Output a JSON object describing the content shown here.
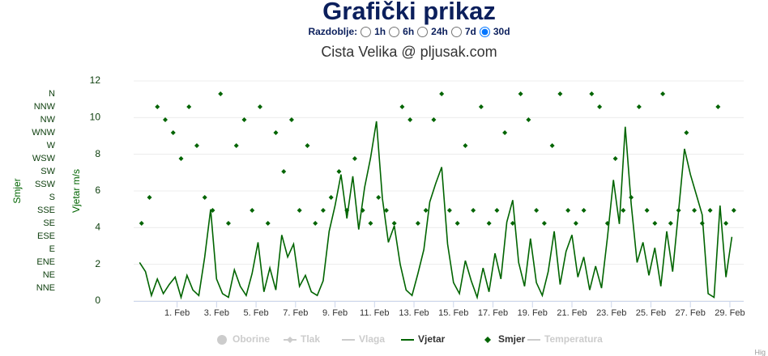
{
  "header": {
    "title": "Grafički prikaz",
    "period_label": "Razdoblje:",
    "period_options": [
      "1h",
      "6h",
      "24h",
      "7d",
      "30d"
    ],
    "period_selected": 4
  },
  "chart_data": {
    "type": "line",
    "subtitle": "Cista Velika @ pljusak.com",
    "y_label": "Vjetar m/s",
    "y2_label": "Smjer",
    "xlim": [
      -2.2,
      28.7
    ],
    "xticks": [
      {
        "value": 0,
        "label": "1. Feb"
      },
      {
        "value": 2,
        "label": "3. Feb"
      },
      {
        "value": 4,
        "label": "5. Feb"
      },
      {
        "value": 6,
        "label": "7. Feb"
      },
      {
        "value": 8,
        "label": "9. Feb"
      },
      {
        "value": 10,
        "label": "11. Feb"
      },
      {
        "value": 12,
        "label": "13. Feb"
      },
      {
        "value": 14,
        "label": "15. Feb"
      },
      {
        "value": 16,
        "label": "17. Feb"
      },
      {
        "value": 18,
        "label": "19. Feb"
      },
      {
        "value": 20,
        "label": "21. Feb"
      },
      {
        "value": 22,
        "label": "23. Feb"
      },
      {
        "value": 24,
        "label": "25. Feb"
      },
      {
        "value": 26,
        "label": "27. Feb"
      },
      {
        "value": 28,
        "label": "29. Feb"
      }
    ],
    "ylim": [
      0,
      12
    ],
    "yticks": [
      0,
      2,
      4,
      6,
      8,
      10,
      12
    ],
    "y2lim": [
      0,
      382.5
    ],
    "y2ticks": [
      {
        "value": 22.5,
        "label": "NNE"
      },
      {
        "value": 45,
        "label": "NE"
      },
      {
        "value": 67.5,
        "label": "ENE"
      },
      {
        "value": 90,
        "label": "E"
      },
      {
        "value": 112.5,
        "label": "ESE"
      },
      {
        "value": 135,
        "label": "SE"
      },
      {
        "value": 157.5,
        "label": "SSE"
      },
      {
        "value": 180,
        "label": "S"
      },
      {
        "value": 202.5,
        "label": "SSW"
      },
      {
        "value": 225,
        "label": "SW"
      },
      {
        "value": 247.5,
        "label": "WSW"
      },
      {
        "value": 270,
        "label": "W"
      },
      {
        "value": 292.5,
        "label": "WNW"
      },
      {
        "value": 315,
        "label": "NW"
      },
      {
        "value": 337.5,
        "label": "NNW"
      },
      {
        "value": 360,
        "label": "N"
      }
    ],
    "grid": true,
    "credits": "Hig",
    "series": [
      {
        "name": "Oborine",
        "type": "column",
        "visible": false,
        "marker": "circle"
      },
      {
        "name": "Tlak",
        "type": "line",
        "visible": false,
        "marker": "line-diamond"
      },
      {
        "name": "Vlaga",
        "type": "line",
        "visible": false,
        "marker": "line"
      },
      {
        "name": "Vjetar",
        "type": "line",
        "visible": true,
        "marker": "line",
        "color": "#006400",
        "x": [
          -1.9,
          -1.6,
          -1.3,
          -1.0,
          -0.7,
          -0.4,
          -0.1,
          0.2,
          0.5,
          0.8,
          1.1,
          1.4,
          1.7,
          2.0,
          2.3,
          2.6,
          2.9,
          3.2,
          3.5,
          3.8,
          4.1,
          4.4,
          4.7,
          5.0,
          5.3,
          5.6,
          5.9,
          6.2,
          6.5,
          6.8,
          7.1,
          7.4,
          7.7,
          8.0,
          8.3,
          8.6,
          8.9,
          9.2,
          9.5,
          9.8,
          10.1,
          10.4,
          10.7,
          11.0,
          11.3,
          11.6,
          11.9,
          12.2,
          12.5,
          12.8,
          13.1,
          13.4,
          13.7,
          14.0,
          14.3,
          14.6,
          14.9,
          15.2,
          15.5,
          15.8,
          16.1,
          16.4,
          16.7,
          17.0,
          17.3,
          17.6,
          17.9,
          18.2,
          18.5,
          18.8,
          19.1,
          19.4,
          19.7,
          20.0,
          20.3,
          20.6,
          20.9,
          21.2,
          21.5,
          21.8,
          22.1,
          22.4,
          22.7,
          23.0,
          23.3,
          23.6,
          23.9,
          24.2,
          24.5,
          24.8,
          25.1,
          25.4,
          25.7,
          26.0,
          26.3,
          26.6,
          26.9,
          27.2,
          27.5,
          27.8,
          28.1
        ],
        "values": [
          2.1,
          1.6,
          0.3,
          1.2,
          0.4,
          0.9,
          1.3,
          0.2,
          1.4,
          0.6,
          0.3,
          2.4,
          5.0,
          1.2,
          0.4,
          0.2,
          1.7,
          0.8,
          0.3,
          1.5,
          3.2,
          0.5,
          1.8,
          0.6,
          3.6,
          2.4,
          3.1,
          0.8,
          1.4,
          0.5,
          0.3,
          1.1,
          3.8,
          5.2,
          6.9,
          4.5,
          6.8,
          3.9,
          6.2,
          7.8,
          9.8,
          5.6,
          3.2,
          4.1,
          2.0,
          0.6,
          0.3,
          1.5,
          2.8,
          5.4,
          6.4,
          7.3,
          3.1,
          1.0,
          0.4,
          2.2,
          1.1,
          0.2,
          1.8,
          0.5,
          2.6,
          1.2,
          4.3,
          5.5,
          2.1,
          0.8,
          3.4,
          1.0,
          0.3,
          1.6,
          3.8,
          0.9,
          2.7,
          3.6,
          1.3,
          2.4,
          0.6,
          1.9,
          0.7,
          3.5,
          6.6,
          4.2,
          9.5,
          5.3,
          2.1,
          3.2,
          1.4,
          2.9,
          0.8,
          3.8,
          1.6,
          4.9,
          8.3,
          6.9,
          5.8,
          4.7,
          0.4,
          0.2,
          5.2,
          1.3,
          3.5
        ]
      },
      {
        "name": "Smjer",
        "type": "scatter",
        "visible": true,
        "marker": "diamond",
        "color": "#006400",
        "axis": "y2",
        "x": [
          -1.8,
          -1.4,
          -1.0,
          -0.6,
          -0.2,
          0.2,
          0.6,
          1.0,
          1.4,
          1.8,
          2.2,
          2.6,
          3.0,
          3.4,
          3.8,
          4.2,
          4.6,
          5.0,
          5.4,
          5.8,
          6.2,
          6.6,
          7.0,
          7.4,
          7.8,
          8.2,
          8.6,
          9.0,
          9.4,
          9.8,
          10.2,
          10.6,
          11.0,
          11.4,
          11.8,
          12.2,
          12.6,
          13.0,
          13.4,
          13.8,
          14.2,
          14.6,
          15.0,
          15.4,
          15.8,
          16.2,
          16.6,
          17.0,
          17.4,
          17.8,
          18.2,
          18.6,
          19.0,
          19.4,
          19.8,
          20.2,
          20.6,
          21.0,
          21.4,
          21.8,
          22.2,
          22.6,
          23.0,
          23.4,
          23.8,
          24.2,
          24.6,
          25.0,
          25.4,
          25.8,
          26.2,
          26.6,
          27.0,
          27.4,
          27.8,
          28.2
        ],
        "values": [
          135,
          180,
          337.5,
          315,
          292.5,
          247.5,
          337.5,
          270,
          180,
          157.5,
          360,
          135,
          270,
          315,
          157.5,
          337.5,
          135,
          292.5,
          225,
          315,
          157.5,
          270,
          135,
          157.5,
          180,
          225,
          157.5,
          247.5,
          157.5,
          135,
          180,
          157.5,
          135,
          337.5,
          315,
          135,
          157.5,
          315,
          360,
          157.5,
          135,
          270,
          157.5,
          337.5,
          135,
          157.5,
          292.5,
          135,
          360,
          315,
          157.5,
          135,
          270,
          360,
          157.5,
          135,
          157.5,
          360,
          337.5,
          135,
          247.5,
          157.5,
          180,
          337.5,
          157.5,
          135,
          360,
          135,
          157.5,
          292.5,
          157.5,
          135,
          157.5,
          337.5,
          135,
          157.5
        ]
      },
      {
        "name": "Temperatura",
        "type": "line",
        "visible": false,
        "marker": "line"
      }
    ]
  }
}
